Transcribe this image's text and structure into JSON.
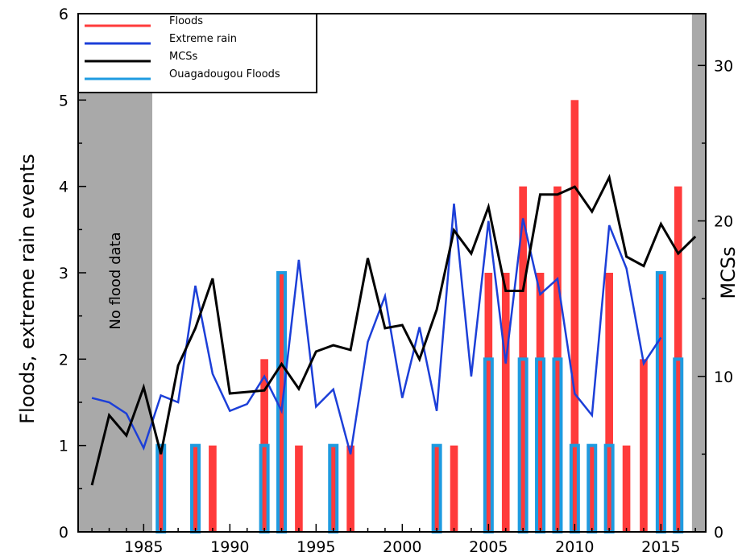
{
  "chart_data": {
    "type": "bar",
    "title": "",
    "ylabel": "Floods, extreme rain events",
    "y2label": "MCSs",
    "xlim": [
      1981.2,
      2017.6
    ],
    "ylim": [
      0,
      6
    ],
    "y2lim": [
      0,
      33.33
    ],
    "x_ticks": [
      1985,
      1990,
      1995,
      2000,
      2005,
      2010,
      2015
    ],
    "y_ticks": [
      0,
      1,
      2,
      3,
      4,
      5,
      6
    ],
    "y2_ticks": [
      0,
      10,
      20,
      30
    ],
    "legend_position": "top-left",
    "grid": false,
    "no_data_label": "No flood data",
    "shaded_ranges": [
      [
        1981.2,
        1985.5
      ],
      [
        2016.8,
        2017.6
      ]
    ],
    "series": [
      {
        "name": "Floods",
        "kind": "bar",
        "axis": "left",
        "color": "#ff3b3b",
        "x": [
          1986,
          1988,
          1989,
          1992,
          1993,
          1994,
          1996,
          1997,
          2002,
          2003,
          2005,
          2006,
          2007,
          2008,
          2009,
          2010,
          2011,
          2012,
          2013,
          2014,
          2015,
          2016
        ],
        "values": [
          1,
          1,
          1,
          2,
          3,
          1,
          1,
          1,
          1,
          1,
          3,
          3,
          4,
          3,
          4,
          5,
          1,
          3,
          1,
          2,
          3,
          4
        ]
      },
      {
        "name": "Extreme rain",
        "kind": "line",
        "axis": "left",
        "color": "#1c3fd8",
        "x": [
          1982,
          1983,
          1984,
          1985,
          1986,
          1987,
          1988,
          1989,
          1990,
          1991,
          1992,
          1993,
          1994,
          1995,
          1996,
          1997,
          1998,
          1999,
          2000,
          2001,
          2002,
          2003,
          2004,
          2005,
          2006,
          2007,
          2008,
          2009,
          2010,
          2011,
          2012,
          2013,
          2014,
          2015
        ],
        "values": [
          1.55,
          1.5,
          1.37,
          0.97,
          1.58,
          1.5,
          2.85,
          1.83,
          1.4,
          1.48,
          1.8,
          1.4,
          3.15,
          1.45,
          1.65,
          0.9,
          2.2,
          2.73,
          1.55,
          2.37,
          1.4,
          3.8,
          1.8,
          3.6,
          1.95,
          3.63,
          2.75,
          2.93,
          1.6,
          1.35,
          3.55,
          3.05,
          1.95,
          2.25
        ]
      },
      {
        "name": "MCSs",
        "kind": "line",
        "axis": "right",
        "color": "#000000",
        "x": [
          1982,
          1983,
          1984,
          1985,
          1986,
          1987,
          1988,
          1989,
          1990,
          1991,
          1992,
          1993,
          1994,
          1995,
          1996,
          1997,
          1998,
          1999,
          2000,
          2001,
          2002,
          2003,
          2004,
          2005,
          2006,
          2007,
          2008,
          2009,
          2010,
          2011,
          2012,
          2013,
          2014,
          2015,
          2016,
          2017
        ],
        "values": [
          3.0,
          7.5,
          6.2,
          9.3,
          5.0,
          10.7,
          13.1,
          16.3,
          8.9,
          9.0,
          9.1,
          10.8,
          9.2,
          11.6,
          12.0,
          11.7,
          17.6,
          13.1,
          13.3,
          11.1,
          14.3,
          19.4,
          17.9,
          20.9,
          15.5,
          15.5,
          21.7,
          21.7,
          22.2,
          20.6,
          22.8,
          17.7,
          17.1,
          19.8,
          17.9,
          19.0
        ]
      },
      {
        "name": "Ouagadougou Floods",
        "kind": "bar-outline",
        "axis": "left",
        "color": "#1e9be0",
        "x": [
          1986,
          1988,
          1992,
          1993,
          1996,
          2002,
          2005,
          2007,
          2008,
          2009,
          2010,
          2011,
          2012,
          2015,
          2016
        ],
        "values": [
          1,
          1,
          1,
          3,
          1,
          1,
          2,
          2,
          2,
          2,
          1,
          1,
          1,
          3,
          2
        ]
      }
    ]
  }
}
